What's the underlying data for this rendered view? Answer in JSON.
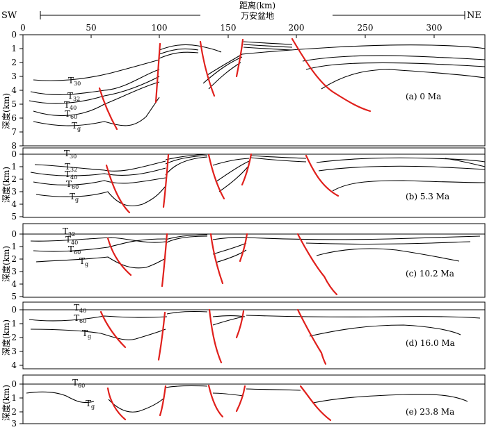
{
  "header": {
    "dir_left": "SW",
    "dir_right": "NE",
    "title_top": "距离(km)",
    "title_bottom": "万安盆地",
    "x_ticks": [
      "0",
      "50",
      "100",
      "150",
      "200",
      "250",
      "300"
    ]
  },
  "depth_label": "深度(km)",
  "panels": [
    {
      "caption": "(a)   0 Ma",
      "y_ticks": [
        "0",
        "1",
        "2",
        "3",
        "4",
        "5",
        "6",
        "7",
        "8"
      ],
      "horizon_labels": [
        {
          "main": "T",
          "sub": "30"
        },
        {
          "main": "T",
          "sub": "32"
        },
        {
          "main": "T",
          "sub": "40"
        },
        {
          "main": "T",
          "sub": "60"
        },
        {
          "main": "T",
          "sub": "g"
        }
      ]
    },
    {
      "caption": "(b)   5.3 Ma",
      "y_ticks": [
        "0",
        "1",
        "2",
        "3",
        "4",
        "5"
      ],
      "horizon_labels": [
        {
          "main": "T",
          "sub": "30"
        },
        {
          "main": "T",
          "sub": "32"
        },
        {
          "main": "T",
          "sub": "40"
        },
        {
          "main": "T",
          "sub": "60"
        },
        {
          "main": "T",
          "sub": "g"
        }
      ]
    },
    {
      "caption": "(c)   10.2 Ma",
      "y_ticks": [
        "0",
        "1",
        "2",
        "3",
        "4",
        "5"
      ],
      "horizon_labels": [
        {
          "main": "T",
          "sub": "32"
        },
        {
          "main": "T",
          "sub": "40"
        },
        {
          "main": "T",
          "sub": "60"
        },
        {
          "main": "T",
          "sub": "g"
        }
      ]
    },
    {
      "caption": "(d)   16.0 Ma",
      "y_ticks": [
        "0",
        "1",
        "2",
        "3",
        "4"
      ],
      "horizon_labels": [
        {
          "main": "T",
          "sub": "40"
        },
        {
          "main": "T",
          "sub": "60"
        },
        {
          "main": "T",
          "sub": "g"
        }
      ]
    },
    {
      "caption": "(e)   23.8 Ma",
      "y_ticks": [
        "0",
        "1",
        "2",
        "3"
      ],
      "horizon_labels": [
        {
          "main": "T",
          "sub": "60"
        },
        {
          "main": "T",
          "sub": "g"
        }
      ]
    }
  ],
  "colors": {
    "fault": "#e0201c",
    "horizon": "#000000"
  }
}
